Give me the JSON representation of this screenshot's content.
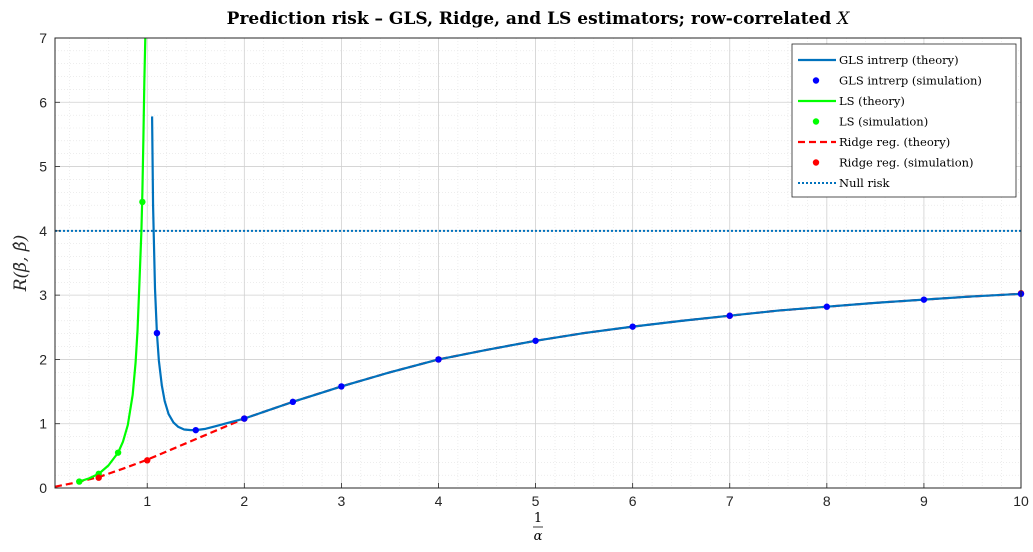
{
  "chart_data": {
    "type": "line",
    "title": "Prediction risk – GLS, Ridge, and LS estimators; row-correlated X",
    "title_prefix": "Prediction risk – GLS, Ridge, and LS estimators; row-correlated ",
    "title_var": "X",
    "xlabel_num": "1",
    "xlabel_den": "α",
    "ylabel": "R(β̄, β̂)",
    "xlim": [
      0.05,
      10
    ],
    "ylim": [
      0,
      7
    ],
    "xticks": [
      1,
      2,
      3,
      4,
      5,
      6,
      7,
      8,
      9,
      10
    ],
    "yticks": [
      0,
      1,
      2,
      3,
      4,
      5,
      6,
      7
    ],
    "grid": true,
    "minor_grid": true,
    "legend_position": "top-right",
    "colors": {
      "gls": "#0072bd",
      "gls_sim": "#0000ff",
      "ls": "#00ff00",
      "ridge": "#ff0000",
      "null": "#0072bd"
    },
    "series": [
      {
        "name": "GLS intrerp (theory)",
        "style": "solid",
        "x": [
          1.05,
          1.06,
          1.08,
          1.1,
          1.12,
          1.15,
          1.18,
          1.22,
          1.27,
          1.32,
          1.38,
          1.45,
          1.5,
          1.6,
          1.7,
          1.8,
          2.0,
          2.25,
          2.5,
          2.75,
          3.0,
          3.5,
          4.0,
          4.5,
          5.0,
          5.5,
          6.0,
          6.5,
          7.0,
          7.5,
          8.0,
          8.5,
          9.0,
          9.5,
          10.0
        ],
        "y": [
          5.78,
          4.4,
          3.1,
          2.4,
          1.98,
          1.6,
          1.35,
          1.15,
          1.02,
          0.95,
          0.91,
          0.9,
          0.9,
          0.92,
          0.96,
          1.0,
          1.08,
          1.21,
          1.34,
          1.46,
          1.58,
          1.8,
          2.0,
          2.15,
          2.29,
          2.41,
          2.51,
          2.6,
          2.68,
          2.76,
          2.82,
          2.88,
          2.93,
          2.98,
          3.02
        ]
      },
      {
        "name": "GLS intrerp (simulation)",
        "style": "marker",
        "x": [
          1.1,
          1.5,
          2.0,
          2.5,
          3.0,
          4.0,
          5.0,
          6.0,
          7.0,
          8.0,
          9.0,
          10.0
        ],
        "y": [
          2.41,
          0.9,
          1.08,
          1.34,
          1.58,
          2.0,
          2.29,
          2.51,
          2.68,
          2.82,
          2.93,
          3.02
        ]
      },
      {
        "name": "LS (theory)",
        "style": "solid",
        "x": [
          0.3,
          0.4,
          0.5,
          0.6,
          0.7,
          0.75,
          0.8,
          0.85,
          0.88,
          0.9,
          0.92,
          0.94,
          0.95,
          0.96,
          0.97,
          0.98
        ],
        "y": [
          0.1,
          0.15,
          0.22,
          0.35,
          0.55,
          0.72,
          0.98,
          1.45,
          1.95,
          2.45,
          3.2,
          4.0,
          4.6,
          5.4,
          6.3,
          7.0
        ]
      },
      {
        "name": "LS (simulation)",
        "style": "marker",
        "x": [
          0.3,
          0.5,
          0.7,
          0.95
        ],
        "y": [
          0.1,
          0.22,
          0.55,
          4.45
        ]
      },
      {
        "name": "Ridge reg. (theory)",
        "style": "dashed",
        "x": [
          0.05,
          0.25,
          0.5,
          0.75,
          1.0,
          1.25,
          1.5,
          1.75,
          2.0,
          2.5,
          3.0,
          3.5,
          4.0,
          4.5,
          5.0,
          5.5,
          6.0,
          6.5,
          7.0,
          7.5,
          8.0,
          8.5,
          9.0,
          9.5,
          10.0
        ],
        "y": [
          0.02,
          0.08,
          0.17,
          0.3,
          0.44,
          0.6,
          0.76,
          0.92,
          1.08,
          1.34,
          1.58,
          1.8,
          2.0,
          2.15,
          2.29,
          2.41,
          2.51,
          2.6,
          2.68,
          2.76,
          2.82,
          2.88,
          2.93,
          2.98,
          3.02
        ]
      },
      {
        "name": "Ridge reg. (simulation)",
        "style": "marker",
        "x": [
          0.5,
          1.0,
          2.0,
          4.0,
          7.0,
          10.0
        ],
        "y": [
          0.16,
          0.43,
          1.08,
          2.0,
          2.68,
          3.03
        ]
      },
      {
        "name": "Null risk",
        "style": "dotted",
        "x": [
          0.05,
          10.0
        ],
        "y": [
          4.0,
          4.0
        ]
      }
    ]
  }
}
